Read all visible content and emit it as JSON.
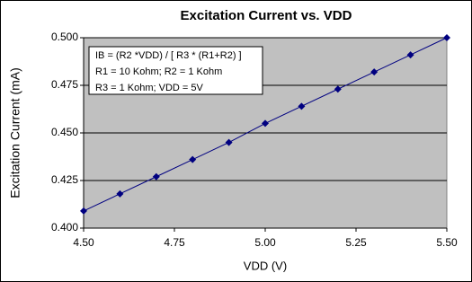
{
  "chart_data": {
    "type": "line",
    "title": "Excitation Current vs. VDD",
    "x_label": "VDD (V)",
    "y_label": "Excitation Current (mA)",
    "annotations": [
      "IB = (R2 *VDD) / [ R3 * (R1+R2) ]",
      "R1 = 10 Kohm;  R2 = 1 Kohm",
      "R3 = 1 Kohm;  VDD = 5V"
    ],
    "x": [
      4.5,
      4.6,
      4.7,
      4.8,
      4.9,
      5.0,
      5.1,
      5.2,
      5.3,
      5.4,
      5.5
    ],
    "series": [
      {
        "name": "IB",
        "color": "#000080",
        "values": [
          0.409,
          0.418,
          0.427,
          0.436,
          0.445,
          0.455,
          0.464,
          0.473,
          0.482,
          0.491,
          0.5
        ]
      }
    ],
    "xlim": [
      4.5,
      5.5
    ],
    "xticks": [
      {
        "value": 4.5,
        "label": "4.50"
      },
      {
        "value": 4.75,
        "label": "4.75"
      },
      {
        "value": 5.0,
        "label": "5.00"
      },
      {
        "value": 5.25,
        "label": "5.25"
      },
      {
        "value": 5.5,
        "label": "5.50"
      }
    ],
    "ylim": [
      0.4,
      0.5
    ],
    "yticks": [
      {
        "value": 0.4,
        "label": "0.400"
      },
      {
        "value": 0.425,
        "label": "0.425"
      },
      {
        "value": 0.45,
        "label": "0.450"
      },
      {
        "value": 0.475,
        "label": "0.475"
      },
      {
        "value": 0.5,
        "label": "0.500"
      }
    ],
    "grid": true,
    "plot_background": "#c0c0c0"
  }
}
